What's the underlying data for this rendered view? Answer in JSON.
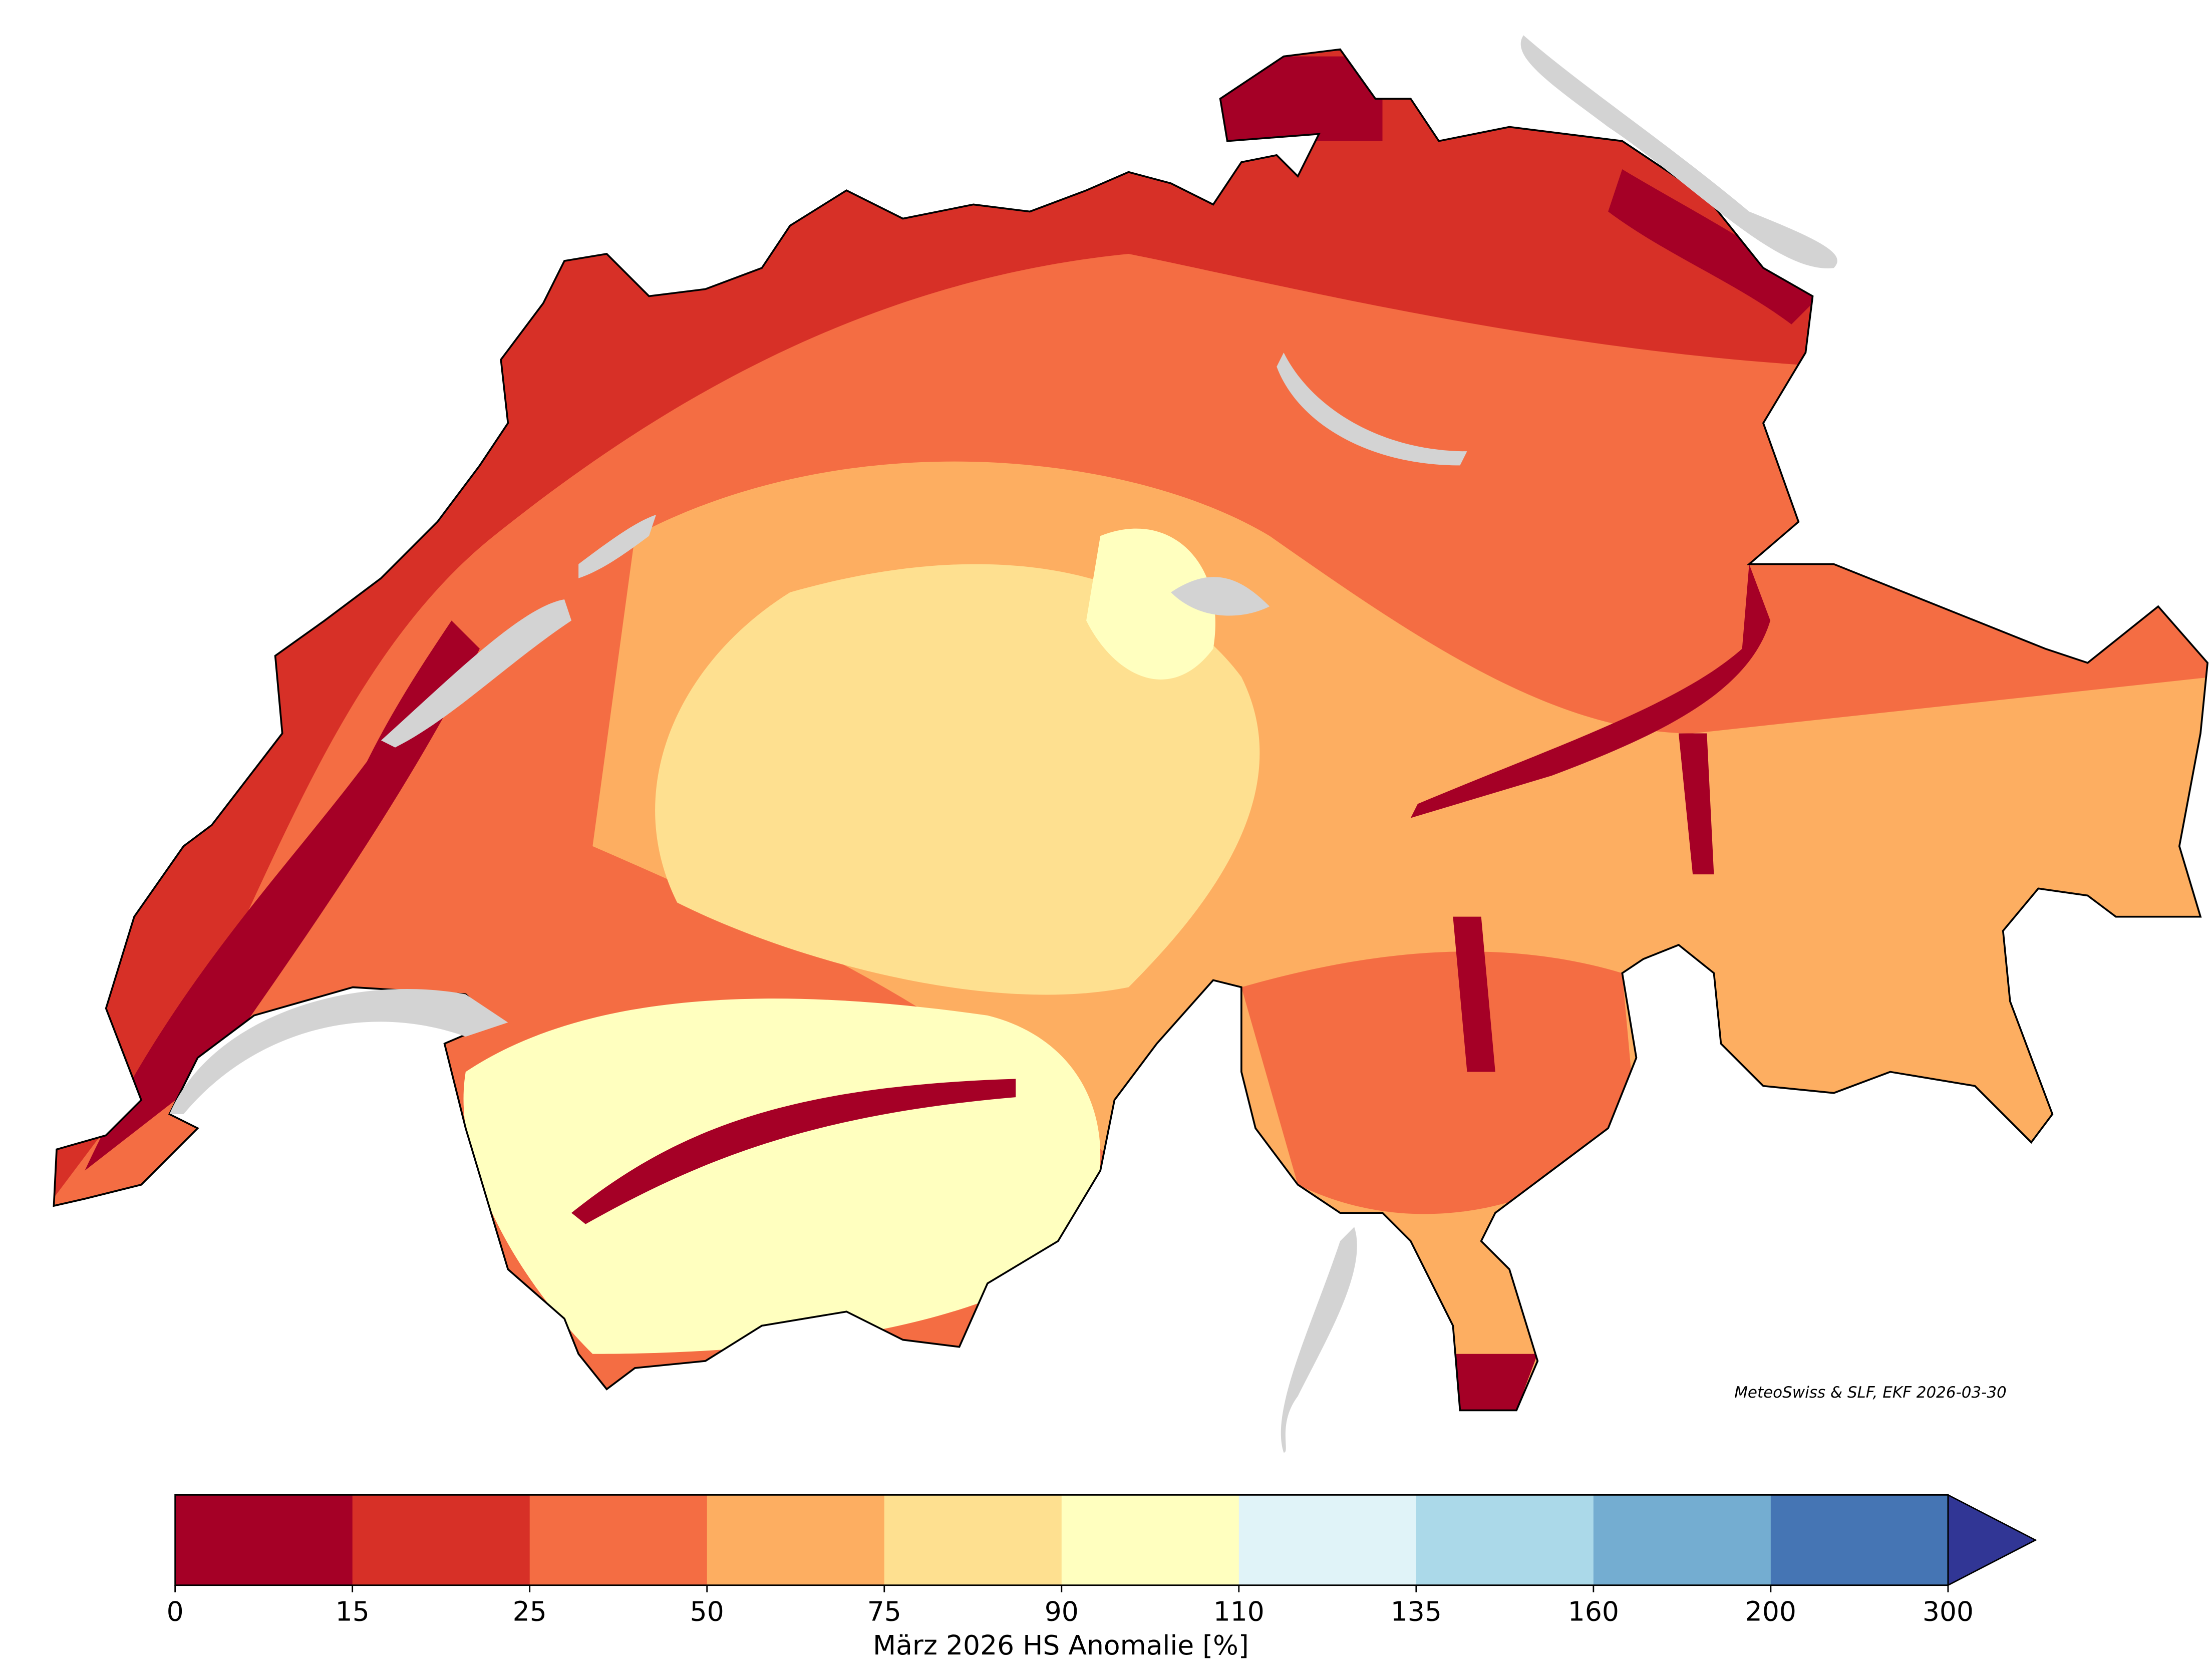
{
  "map": {
    "credit": "MeteoSwiss & SLF, EKF 2026-03-30"
  },
  "colorbar": {
    "label": "März 2026 HS Anomalie [%]",
    "boundaries": [
      0,
      15,
      25,
      50,
      75,
      90,
      110,
      135,
      160,
      200,
      300
    ],
    "colors": [
      "#a50026",
      "#d73027",
      "#f46d43",
      "#fdae61",
      "#fee090",
      "#ffffbf",
      "#e0f3f8",
      "#abd9e9",
      "#74add1",
      "#4575b4"
    ],
    "extend_color": "#313695"
  }
}
